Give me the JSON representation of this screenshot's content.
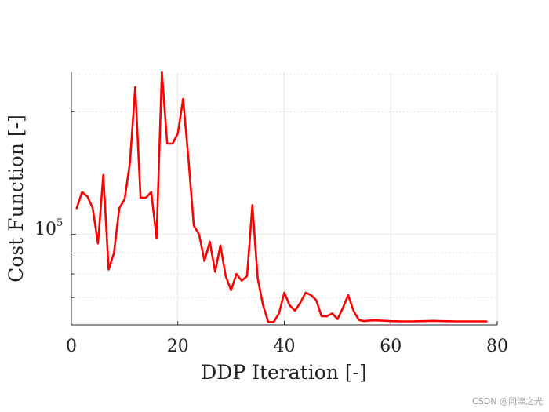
{
  "chart_data": {
    "type": "line",
    "xlabel": "DDP Iteration [-]",
    "ylabel": "Cost Function [-]",
    "x_ticks": [
      "0",
      "20",
      "40",
      "60",
      "80"
    ],
    "y_tick_label_base": "10",
    "y_tick_label_exp": "5",
    "xlim": [
      0,
      80
    ],
    "ylim": [
      60000,
      250000
    ],
    "y_scale": "log",
    "grid": true,
    "line_color": "#ff0000",
    "series": [
      {
        "x": [
          1,
          2,
          3,
          4,
          5,
          6,
          7,
          8,
          9,
          10,
          11,
          12,
          13,
          14,
          15,
          16,
          17,
          18,
          19,
          20,
          21,
          22,
          23,
          24,
          25,
          26,
          27,
          28,
          29,
          30,
          31,
          32,
          33,
          34,
          35,
          36,
          37,
          38,
          39,
          40,
          41,
          42,
          43,
          44,
          45,
          46,
          47,
          48,
          49,
          50,
          51,
          52,
          53,
          54,
          55,
          56,
          57,
          58,
          59,
          60,
          61,
          62,
          63,
          64,
          65,
          66,
          67,
          68,
          69,
          70,
          71,
          72,
          73,
          74,
          75,
          76,
          77,
          78
        ],
        "y": [
          116000,
          127000,
          124000,
          116000,
          95000,
          140000,
          82000,
          90000,
          116000,
          122000,
          150000,
          230000,
          123000,
          123000,
          127000,
          98000,
          250000,
          167000,
          167000,
          177000,
          215000,
          153000,
          105000,
          100000,
          86000,
          96000,
          81000,
          94000,
          79000,
          73000,
          80000,
          77000,
          79000,
          118000,
          78000,
          67000,
          61000,
          61000,
          64000,
          72000,
          67000,
          65000,
          68000,
          72000,
          71000,
          69000,
          63000,
          63000,
          64000,
          62000,
          66000,
          71000,
          65000,
          61700,
          61300,
          61500,
          61600,
          61500,
          61400,
          61300,
          61250,
          61200,
          61200,
          61200,
          61250,
          61300,
          61350,
          61400,
          61350,
          61300,
          61250,
          61200,
          61200,
          61200,
          61200,
          61200,
          61200,
          61200
        ]
      }
    ],
    "watermark": "CSDN @问津之光"
  }
}
